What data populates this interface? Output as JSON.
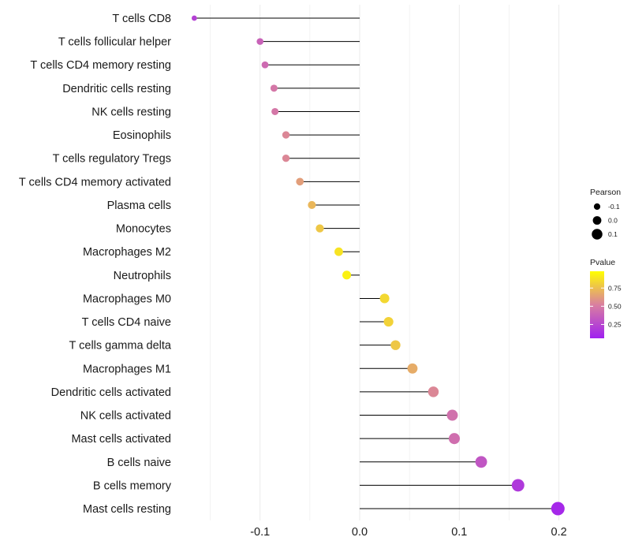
{
  "chart_data": {
    "type": "lollipop",
    "title": "",
    "xlabel": "",
    "ylabel": "",
    "xlim": [
      -0.167,
      0.2
    ],
    "x_ticks": [
      -0.1,
      0.0,
      0.1,
      0.2
    ],
    "x_tick_labels": [
      "-0.1",
      "0.0",
      "0.1",
      "0.2"
    ],
    "grid": true,
    "points": [
      {
        "label": "T cells CD8",
        "pearson": -0.166,
        "pvalue": 0.22
      },
      {
        "label": "T cells follicular helper",
        "pearson": -0.1,
        "pvalue": 0.38
      },
      {
        "label": "T cells CD4 memory resting",
        "pearson": -0.095,
        "pvalue": 0.42
      },
      {
        "label": "Dendritic cells resting",
        "pearson": -0.086,
        "pvalue": 0.48
      },
      {
        "label": "NK cells resting",
        "pearson": -0.085,
        "pvalue": 0.48
      },
      {
        "label": "Eosinophils",
        "pearson": -0.074,
        "pvalue": 0.55
      },
      {
        "label": "T cells regulatory  Tregs ",
        "pearson": -0.074,
        "pvalue": 0.55
      },
      {
        "label": "T cells CD4 memory activated",
        "pearson": -0.06,
        "pvalue": 0.63
      },
      {
        "label": "Plasma cells",
        "pearson": -0.048,
        "pvalue": 0.72
      },
      {
        "label": "Monocytes",
        "pearson": -0.04,
        "pvalue": 0.78
      },
      {
        "label": "Macrophages M2",
        "pearson": -0.021,
        "pvalue": 0.88
      },
      {
        "label": "Neutrophils",
        "pearson": -0.013,
        "pvalue": 0.93
      },
      {
        "label": "Macrophages M0",
        "pearson": 0.025,
        "pvalue": 0.84
      },
      {
        "label": "T cells CD4 naive",
        "pearson": 0.029,
        "pvalue": 0.82
      },
      {
        "label": "T cells gamma delta",
        "pearson": 0.036,
        "pvalue": 0.78
      },
      {
        "label": "Macrophages M1",
        "pearson": 0.053,
        "pvalue": 0.68
      },
      {
        "label": "Dendritic cells activated",
        "pearson": 0.074,
        "pvalue": 0.55
      },
      {
        "label": "NK cells activated",
        "pearson": 0.093,
        "pvalue": 0.45
      },
      {
        "label": "Mast cells activated",
        "pearson": 0.095,
        "pvalue": 0.44
      },
      {
        "label": "B cells naive",
        "pearson": 0.122,
        "pvalue": 0.32
      },
      {
        "label": "B cells memory",
        "pearson": 0.159,
        "pvalue": 0.18
      },
      {
        "label": "Mast cells resting",
        "pearson": 0.199,
        "pvalue": 0.1
      }
    ],
    "legend": {
      "placement": "right",
      "size_title": "Pearson",
      "size_entries": [
        {
          "label": "-0.1",
          "value": -0.1
        },
        {
          "label": "0.0",
          "value": 0.0
        },
        {
          "label": "0.1",
          "value": 0.1
        }
      ],
      "color_title": "Pvalue",
      "color_range": [
        0.06,
        0.98
      ],
      "color_ticks": [
        {
          "label": "0.75",
          "value": 0.75
        },
        {
          "label": "0.50",
          "value": 0.5
        },
        {
          "label": "0.25",
          "value": 0.25
        }
      ]
    },
    "colors": {
      "low_pvalue": "#a020f0",
      "mid_pvalue": "#d97fa0",
      "high_pvalue": "#ffff00",
      "stem": "#000000",
      "grid": "#ebebeb"
    }
  }
}
